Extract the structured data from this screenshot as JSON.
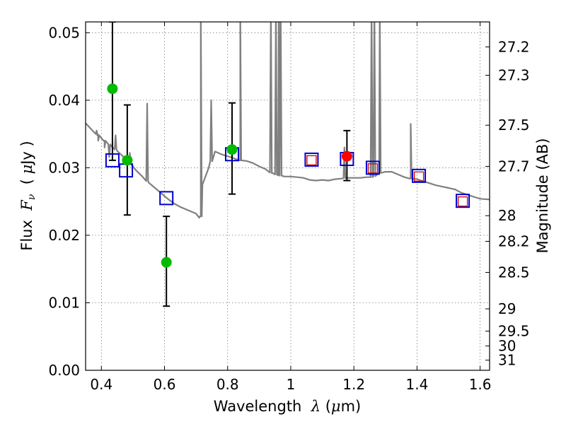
{
  "chart_data": {
    "type": "scatter",
    "xlabel_parts": [
      "Wavelength  ",
      "λ",
      " (",
      "μ",
      "m)"
    ],
    "ylabel_parts": [
      "Flux  ",
      "F",
      "ν",
      "  ( ",
      "μ",
      "Jy )"
    ],
    "y2label": "Magnitude (AB)",
    "xlim": [
      0.35,
      1.63
    ],
    "ylim": [
      0.0,
      0.0516
    ],
    "grid": true,
    "x_ticks": [
      0.4,
      0.6,
      0.8,
      1.0,
      1.2,
      1.4,
      1.6
    ],
    "x_tick_labels": [
      "0.4",
      "0.6",
      "0.8",
      "1",
      "1.2",
      "1.4",
      "1.6"
    ],
    "y_ticks": [
      0.0,
      0.01,
      0.02,
      0.03,
      0.04,
      0.05
    ],
    "y_tick_labels": [
      "0.00",
      "0.01",
      "0.02",
      "0.03",
      "0.04",
      "0.05"
    ],
    "y2_ticks": [
      {
        "label": "27.2",
        "flux": 0.0479
      },
      {
        "label": "27.3",
        "flux": 0.0437
      },
      {
        "label": "27.5",
        "flux": 0.0363
      },
      {
        "label": "27.7",
        "flux": 0.0302
      },
      {
        "label": "28",
        "flux": 0.0229
      },
      {
        "label": "28.2",
        "flux": 0.0191
      },
      {
        "label": "28.5",
        "flux": 0.0145
      },
      {
        "label": "29",
        "flux": 0.0091
      },
      {
        "label": "29.5",
        "flux": 0.0058
      },
      {
        "label": "30",
        "flux": 0.0036
      },
      {
        "label": "31",
        "flux": 0.0015
      }
    ],
    "series": [
      {
        "kind": "spectrum",
        "color": "#808080",
        "continuum": [
          [
            0.35,
            0.0366
          ],
          [
            0.37,
            0.0356
          ],
          [
            0.39,
            0.0348
          ],
          [
            0.41,
            0.034
          ],
          [
            0.43,
            0.0333
          ],
          [
            0.45,
            0.0325
          ],
          [
            0.47,
            0.0316
          ],
          [
            0.49,
            0.0306
          ],
          [
            0.51,
            0.0296
          ],
          [
            0.53,
            0.0287
          ],
          [
            0.55,
            0.0278
          ],
          [
            0.57,
            0.027
          ],
          [
            0.59,
            0.0262
          ],
          [
            0.61,
            0.0254
          ],
          [
            0.63,
            0.0247
          ],
          [
            0.65,
            0.0242
          ],
          [
            0.67,
            0.0238
          ],
          [
            0.69,
            0.0234
          ],
          [
            0.7,
            0.0232
          ],
          [
            0.71,
            0.0226
          ],
          [
            0.715,
            0.0228
          ],
          [
            0.72,
            0.0275
          ],
          [
            0.74,
            0.03
          ],
          [
            0.76,
            0.0324
          ],
          [
            0.78,
            0.032
          ],
          [
            0.8,
            0.0317
          ],
          [
            0.82,
            0.0314
          ],
          [
            0.84,
            0.0311
          ],
          [
            0.86,
            0.031
          ],
          [
            0.88,
            0.0307
          ],
          [
            0.9,
            0.0302
          ],
          [
            0.92,
            0.0298
          ],
          [
            0.94,
            0.0292
          ],
          [
            0.96,
            0.0289
          ],
          [
            0.98,
            0.0287
          ],
          [
            1.0,
            0.0287
          ],
          [
            1.02,
            0.0286
          ],
          [
            1.04,
            0.0285
          ],
          [
            1.06,
            0.0282
          ],
          [
            1.08,
            0.0281
          ],
          [
            1.1,
            0.0282
          ],
          [
            1.12,
            0.0281
          ],
          [
            1.14,
            0.0283
          ],
          [
            1.16,
            0.0284
          ],
          [
            1.18,
            0.0285
          ],
          [
            1.2,
            0.0285
          ],
          [
            1.22,
            0.0285
          ],
          [
            1.24,
            0.0286
          ],
          [
            1.26,
            0.0286
          ],
          [
            1.28,
            0.0292
          ],
          [
            1.3,
            0.0294
          ],
          [
            1.32,
            0.0294
          ],
          [
            1.34,
            0.029
          ],
          [
            1.36,
            0.0286
          ],
          [
            1.38,
            0.0284
          ],
          [
            1.4,
            0.0283
          ],
          [
            1.42,
            0.028
          ],
          [
            1.44,
            0.0277
          ],
          [
            1.46,
            0.0274
          ],
          [
            1.48,
            0.0272
          ],
          [
            1.5,
            0.027
          ],
          [
            1.52,
            0.0268
          ],
          [
            1.54,
            0.0263
          ],
          [
            1.56,
            0.026
          ],
          [
            1.58,
            0.0257
          ],
          [
            1.6,
            0.0254
          ],
          [
            1.63,
            0.0253
          ]
        ],
        "lines": [
          [
            0.385,
            0.0355
          ],
          [
            0.39,
            0.034
          ],
          [
            0.41,
            0.033
          ],
          [
            0.425,
            0.0316
          ],
          [
            0.445,
            0.0348
          ],
          [
            0.49,
            0.0322
          ],
          [
            0.545,
            0.0395
          ],
          [
            0.715,
            0.054
          ],
          [
            0.748,
            0.04
          ],
          [
            0.84,
            0.054
          ],
          [
            0.937,
            0.054
          ],
          [
            0.953,
            0.054
          ],
          [
            0.962,
            0.054
          ],
          [
            0.968,
            0.054
          ],
          [
            1.17,
            0.033
          ],
          [
            1.256,
            0.054
          ],
          [
            1.265,
            0.054
          ],
          [
            1.282,
            0.054
          ],
          [
            1.38,
            0.0365
          ]
        ]
      },
      {
        "kind": "photometry",
        "color": "#00bb00",
        "points": [
          {
            "x": 0.435,
            "y": 0.0417,
            "yerr_lo": 0.0311,
            "yerr_hi": 0.0516
          },
          {
            "x": 0.482,
            "y": 0.0311,
            "yerr_lo": 0.023,
            "yerr_hi": 0.0393
          },
          {
            "x": 0.606,
            "y": 0.016,
            "yerr_lo": 0.0095,
            "yerr_hi": 0.0228
          },
          {
            "x": 0.814,
            "y": 0.0327,
            "yerr_lo": 0.0261,
            "yerr_hi": 0.0396
          }
        ]
      },
      {
        "kind": "photometry",
        "color": "#ff0000",
        "points": [
          {
            "x": 1.178,
            "y": 0.0317,
            "yerr_lo": 0.0281,
            "yerr_hi": 0.0355
          }
        ]
      },
      {
        "kind": "synthetic",
        "color": "#0000cc",
        "points": [
          {
            "x": 0.435,
            "y": 0.0311
          },
          {
            "x": 0.478,
            "y": 0.0296
          },
          {
            "x": 0.606,
            "y": 0.0255
          },
          {
            "x": 0.814,
            "y": 0.032
          },
          {
            "x": 1.066,
            "y": 0.0312
          },
          {
            "x": 1.178,
            "y": 0.0313
          },
          {
            "x": 1.26,
            "y": 0.03
          },
          {
            "x": 1.406,
            "y": 0.0288
          },
          {
            "x": 1.545,
            "y": 0.0251
          }
        ]
      },
      {
        "kind": "synthetic",
        "color": "#cc0000",
        "points": [
          {
            "x": 1.066,
            "y": 0.0311
          },
          {
            "x": 1.26,
            "y": 0.0299
          },
          {
            "x": 1.406,
            "y": 0.0287
          },
          {
            "x": 1.545,
            "y": 0.025
          }
        ]
      }
    ]
  }
}
